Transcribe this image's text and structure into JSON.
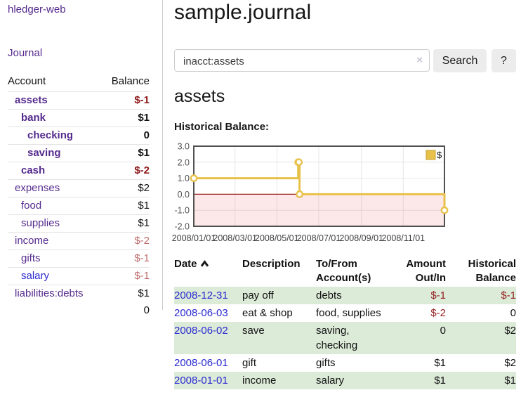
{
  "app": {
    "title": "hledger-web",
    "nav_journal": "Journal"
  },
  "colors": {
    "link_purple": "#552b8d",
    "link_blue": "#2a2ad0",
    "negative_dark": "#8c1717",
    "negative_light": "#c06c6c",
    "register_negative": "#941f1f",
    "zebra_green": "#dcead8",
    "button_gray": "#ececec"
  },
  "sidebar": {
    "table": {
      "col_account": "Account",
      "col_balance": "Balance"
    },
    "accounts": [
      {
        "name": "assets",
        "depth": 1,
        "bold": true,
        "balance": "$-1",
        "neg": true
      },
      {
        "name": "bank",
        "depth": 2,
        "bold": true,
        "balance": "$1",
        "neg": false
      },
      {
        "name": "checking",
        "depth": 3,
        "bold": true,
        "balance": "0",
        "neg": false
      },
      {
        "name": "saving",
        "depth": 3,
        "bold": true,
        "balance": "$1",
        "neg": false
      },
      {
        "name": "cash",
        "depth": 2,
        "bold": true,
        "balance": "$-2",
        "neg": true
      },
      {
        "name": "expenses",
        "depth": 1,
        "bold": false,
        "balance": "$2",
        "neg": false
      },
      {
        "name": "food",
        "depth": 2,
        "bold": false,
        "balance": "$1",
        "neg": false
      },
      {
        "name": "supplies",
        "depth": 2,
        "bold": false,
        "balance": "$1",
        "neg": false
      },
      {
        "name": "income",
        "depth": 1,
        "bold": false,
        "balance": "$-2",
        "neg": true
      },
      {
        "name": "gifts",
        "depth": 2,
        "bold": false,
        "balance": "$-1",
        "neg": true
      },
      {
        "name": "salary",
        "depth": 2,
        "bold": false,
        "balance": "$-1",
        "neg": true,
        "link_color": "blue"
      },
      {
        "name": "liabilities:debts",
        "depth": 1,
        "bold": false,
        "balance": "$1",
        "neg": false
      }
    ],
    "total": "0"
  },
  "main": {
    "title": "sample.journal",
    "search": {
      "value": "inacct:assets",
      "clear_icon": "×",
      "search_label": "Search",
      "help_label": "?"
    },
    "account_heading": "assets"
  },
  "icons": {
    "sort_ascending": "chevron-up",
    "clear_search": "x-circle"
  },
  "chart_data": {
    "type": "line",
    "step": true,
    "title": "Historical Balance:",
    "series": [
      {
        "name": "$",
        "color": "#e8c14b",
        "points": [
          [
            "2008-01-01",
            1
          ],
          [
            "2008-06-01",
            2
          ],
          [
            "2008-06-02",
            2
          ],
          [
            "2008-06-03",
            0
          ],
          [
            "2008-12-31",
            -1
          ]
        ]
      }
    ],
    "xrange": [
      "2008-01-01",
      "2008-12-31"
    ],
    "xticks": [
      {
        "date": "2008-01-01",
        "label": "2008/01/01"
      },
      {
        "date": "2008-03-01",
        "label": "2008/03/01"
      },
      {
        "date": "2008-05-01",
        "label": "2008/05/01"
      },
      {
        "date": "2008-07-01",
        "label": "2008/07/01"
      },
      {
        "date": "2008-09-01",
        "label": "2008/09/01"
      },
      {
        "date": "2008-11-01",
        "label": "2008/11/01"
      }
    ],
    "yticks": [
      {
        "v": 3,
        "label": "3.0"
      },
      {
        "v": 2,
        "label": "2.0"
      },
      {
        "v": 1,
        "label": "1.0"
      },
      {
        "v": 0,
        "label": "0.0"
      },
      {
        "v": -1,
        "label": "-1.0"
      },
      {
        "v": -2,
        "label": "-2.0"
      }
    ],
    "ylim": [
      -2,
      3
    ],
    "grid": true,
    "legend": {
      "label": "$",
      "position": "top-right"
    },
    "colors": {
      "grid": "#e6e6e6",
      "border": "#515151",
      "below_zero_fill": "rgba(235,80,80,0.13)",
      "zero_line": "#9b1b1b",
      "legend_border": "#c7a02f",
      "tick_text": "#545454"
    }
  },
  "register": {
    "headers": [
      "Date",
      "Description",
      "To/From Account(s)",
      "Amount Out/In",
      "Historical Balance"
    ],
    "sort": {
      "column": "Date",
      "direction": "ascending"
    },
    "rows": [
      {
        "date": "2008-12-31",
        "description": "pay off",
        "accounts": "debts",
        "amount": "$-1",
        "amount_negative": true,
        "balance": "$-1",
        "balance_negative": true
      },
      {
        "date": "2008-06-03",
        "description": "eat & shop",
        "accounts": "food, supplies",
        "amount": "$-2",
        "amount_negative": true,
        "balance": "0",
        "balance_negative": false
      },
      {
        "date": "2008-06-02",
        "description": "save",
        "accounts": "saving, checking",
        "amount": "0",
        "amount_negative": false,
        "balance": "$2",
        "balance_negative": false
      },
      {
        "date": "2008-06-01",
        "description": "gift",
        "accounts": "gifts",
        "amount": "$1",
        "amount_negative": false,
        "balance": "$2",
        "balance_negative": false
      },
      {
        "date": "2008-01-01",
        "description": "income",
        "accounts": "salary",
        "amount": "$1",
        "amount_negative": false,
        "balance": "$1",
        "balance_negative": false
      }
    ]
  }
}
